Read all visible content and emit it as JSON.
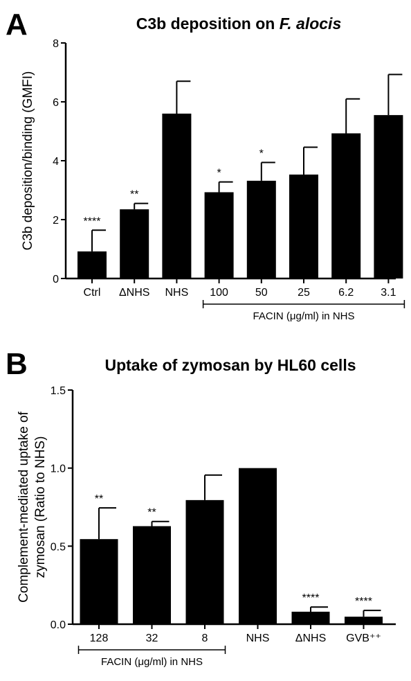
{
  "chart_data": [
    {
      "panel": "A",
      "type": "bar",
      "title_prefix": "C3b deposition on ",
      "title_italic": "F. alocis",
      "ylabel": "C3b deposition/binding (GMFI)",
      "xlabel": "",
      "ylim": [
        0,
        8
      ],
      "yticks": [
        "0",
        "2",
        "4",
        "6",
        "8"
      ],
      "categories": [
        "Ctrl",
        "ΔNHS",
        "NHS",
        "100",
        "50",
        "25",
        "6.2",
        "3.1"
      ],
      "values": [
        0.92,
        2.35,
        5.6,
        2.93,
        3.32,
        3.53,
        4.93,
        5.55
      ],
      "errors": [
        0.72,
        0.2,
        1.1,
        0.35,
        0.62,
        0.93,
        1.17,
        1.38
      ],
      "significance": [
        "****",
        "**",
        "",
        "*",
        "*",
        "",
        "",
        ""
      ],
      "bracket": {
        "label": "FACIN (μg/ml) in NHS",
        "from_index": 3,
        "to_index": 7
      }
    },
    {
      "panel": "B",
      "type": "bar",
      "title": "Uptake of zymosan by HL60 cells",
      "ylabel_lines": [
        "Complement-mediated uptake of",
        "zymosan (Ratio to NHS)"
      ],
      "xlabel": "",
      "ylim": [
        0,
        1.5
      ],
      "yticks": [
        "0.0",
        "0.5",
        "1.0",
        "1.5"
      ],
      "categories": [
        "128",
        "32",
        "8",
        "NHS",
        "ΔNHS",
        "GVB⁺⁺"
      ],
      "values": [
        0.545,
        0.628,
        0.795,
        1.0,
        0.08,
        0.048
      ],
      "errors": [
        0.2,
        0.03,
        0.16,
        0.0,
        0.03,
        0.04
      ],
      "significance": [
        "**",
        "**",
        "",
        "",
        "****",
        "****"
      ],
      "bracket": {
        "label": "FACIN (μg/ml) in NHS",
        "from_index": 0,
        "to_index": 2
      }
    }
  ]
}
